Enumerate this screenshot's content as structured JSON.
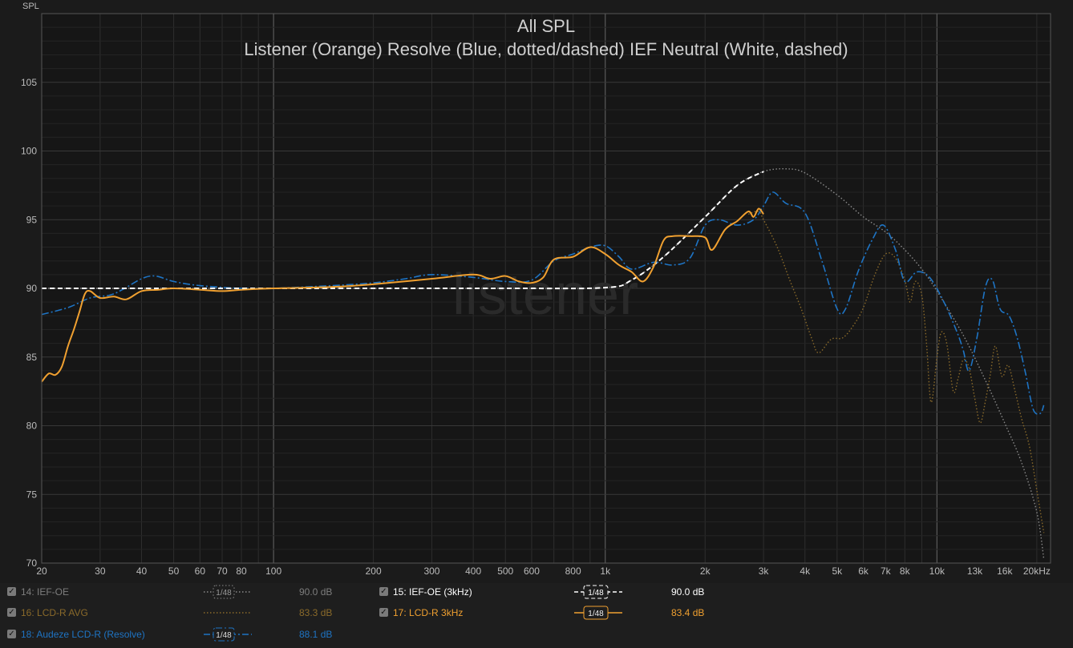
{
  "chart_data": {
    "type": "line",
    "title": "All SPL",
    "subtitle": "Listener (Orange) Resolve (Blue, dotted/dashed) IEF Neutral (White, dashed)",
    "ylabel": "SPL",
    "watermark": "listener",
    "x_scale": "log",
    "xlim": [
      20,
      22000
    ],
    "ylim": [
      70,
      110
    ],
    "grid": true,
    "x_ticks": [
      {
        "v": 20,
        "label": "20"
      },
      {
        "v": 30,
        "label": "30"
      },
      {
        "v": 40,
        "label": "40"
      },
      {
        "v": 50,
        "label": "50"
      },
      {
        "v": 60,
        "label": "60"
      },
      {
        "v": 70,
        "label": "70"
      },
      {
        "v": 80,
        "label": "80"
      },
      {
        "v": 100,
        "label": "100"
      },
      {
        "v": 200,
        "label": "200"
      },
      {
        "v": 300,
        "label": "300"
      },
      {
        "v": 400,
        "label": "400"
      },
      {
        "v": 500,
        "label": "500"
      },
      {
        "v": 600,
        "label": "600"
      },
      {
        "v": 800,
        "label": "800"
      },
      {
        "v": 1000,
        "label": "1k"
      },
      {
        "v": 2000,
        "label": "2k"
      },
      {
        "v": 3000,
        "label": "3k"
      },
      {
        "v": 4000,
        "label": "4k"
      },
      {
        "v": 5000,
        "label": "5k"
      },
      {
        "v": 6000,
        "label": "6k"
      },
      {
        "v": 7000,
        "label": "7k"
      },
      {
        "v": 8000,
        "label": "8k"
      },
      {
        "v": 10000,
        "label": "10k"
      },
      {
        "v": 13000,
        "label": "13k"
      },
      {
        "v": 16000,
        "label": "16k"
      },
      {
        "v": 20000,
        "label": "20kHz"
      }
    ],
    "y_ticks": [
      {
        "v": 70,
        "label": "70"
      },
      {
        "v": 75,
        "label": "75"
      },
      {
        "v": 80,
        "label": "80"
      },
      {
        "v": 85,
        "label": "85"
      },
      {
        "v": 90,
        "label": "90"
      },
      {
        "v": 95,
        "label": "95"
      },
      {
        "v": 100,
        "label": "100"
      },
      {
        "v": 105,
        "label": "105"
      }
    ],
    "series": [
      {
        "name": "14: IEF-OE",
        "color": "#8a8a8a",
        "style": "dotted",
        "points": [
          [
            20,
            90
          ],
          [
            100,
            90
          ],
          [
            500,
            90
          ],
          [
            1000,
            90.05
          ],
          [
            1200,
            90.6
          ],
          [
            1500,
            92.3
          ],
          [
            2000,
            95.2
          ],
          [
            2500,
            97.5
          ],
          [
            3000,
            98.5
          ],
          [
            3500,
            98.7
          ],
          [
            4000,
            98.4
          ],
          [
            5000,
            96.8
          ],
          [
            6000,
            95.2
          ],
          [
            7000,
            94.1
          ],
          [
            8000,
            92.8
          ],
          [
            9000,
            91.4
          ],
          [
            10000,
            89.8
          ],
          [
            12000,
            86.6
          ],
          [
            14000,
            83.3
          ],
          [
            16000,
            80.2
          ],
          [
            18000,
            77.3
          ],
          [
            20000,
            73.7
          ],
          [
            21000,
            70.3
          ]
        ]
      },
      {
        "name": "16: LCD-R AVG",
        "color": "#8a6a2a",
        "style": "dotted",
        "points": [
          [
            2700,
            95.4
          ],
          [
            2900,
            95.6
          ],
          [
            3000,
            95.0
          ],
          [
            3300,
            93.0
          ],
          [
            3600,
            90.6
          ],
          [
            3900,
            88.5
          ],
          [
            4200,
            86.3
          ],
          [
            4400,
            85.3
          ],
          [
            4800,
            86.3
          ],
          [
            5200,
            86.4
          ],
          [
            5600,
            87.3
          ],
          [
            6000,
            88.6
          ],
          [
            6500,
            91.0
          ],
          [
            7000,
            92.5
          ],
          [
            7500,
            92.2
          ],
          [
            8000,
            90.6
          ],
          [
            8300,
            89.0
          ],
          [
            8600,
            90.5
          ],
          [
            9000,
            89.5
          ],
          [
            9300,
            86.0
          ],
          [
            9600,
            81.7
          ],
          [
            10000,
            85.0
          ],
          [
            10300,
            86.8
          ],
          [
            10700,
            86.0
          ],
          [
            11200,
            82.5
          ],
          [
            11600,
            83.5
          ],
          [
            12000,
            84.8
          ],
          [
            12500,
            84.2
          ],
          [
            13000,
            82.0
          ],
          [
            13500,
            80.2
          ],
          [
            14000,
            81.8
          ],
          [
            14500,
            83.8
          ],
          [
            15000,
            85.8
          ],
          [
            15700,
            83.6
          ],
          [
            16400,
            84.4
          ],
          [
            17200,
            82.5
          ],
          [
            18000,
            80.5
          ],
          [
            19000,
            78.5
          ],
          [
            20000,
            75.3
          ],
          [
            21000,
            72.2
          ]
        ]
      },
      {
        "name": "18: Audeze LCD-R (Resolve)",
        "color": "#1e74c4",
        "style": "dashdot",
        "points": [
          [
            20,
            88.1
          ],
          [
            24,
            88.6
          ],
          [
            28,
            89.3
          ],
          [
            32,
            89.5
          ],
          [
            35,
            89.9
          ],
          [
            40,
            90.7
          ],
          [
            44,
            90.9
          ],
          [
            50,
            90.5
          ],
          [
            60,
            90.2
          ],
          [
            80,
            90.0
          ],
          [
            100,
            90.0
          ],
          [
            150,
            90.2
          ],
          [
            200,
            90.4
          ],
          [
            250,
            90.7
          ],
          [
            300,
            91.0
          ],
          [
            400,
            90.8
          ],
          [
            500,
            90.5
          ],
          [
            600,
            90.6
          ],
          [
            700,
            92.0
          ],
          [
            800,
            92.5
          ],
          [
            900,
            93.0
          ],
          [
            1000,
            93.1
          ],
          [
            1100,
            92.3
          ],
          [
            1200,
            91.4
          ],
          [
            1400,
            91.9
          ],
          [
            1600,
            91.7
          ],
          [
            1800,
            92.2
          ],
          [
            2000,
            94.6
          ],
          [
            2200,
            95.0
          ],
          [
            2500,
            94.6
          ],
          [
            2800,
            95.0
          ],
          [
            3000,
            96.0
          ],
          [
            3200,
            97.0
          ],
          [
            3500,
            96.2
          ],
          [
            4000,
            95.5
          ],
          [
            4500,
            92.0
          ],
          [
            5000,
            88.5
          ],
          [
            5300,
            88.5
          ],
          [
            5800,
            91.3
          ],
          [
            6400,
            93.6
          ],
          [
            6900,
            94.6
          ],
          [
            7500,
            92.8
          ],
          [
            8000,
            90.5
          ],
          [
            8700,
            91.2
          ],
          [
            9500,
            90.8
          ],
          [
            10500,
            89.0
          ],
          [
            11500,
            86.8
          ],
          [
            12000,
            85.5
          ],
          [
            12500,
            84.0
          ],
          [
            13200,
            86.4
          ],
          [
            14000,
            90.1
          ],
          [
            14700,
            90.6
          ],
          [
            15500,
            88.5
          ],
          [
            16500,
            88.0
          ],
          [
            17500,
            86.3
          ],
          [
            18500,
            83.8
          ],
          [
            19500,
            81.2
          ],
          [
            20500,
            80.9
          ],
          [
            21000,
            81.5
          ]
        ]
      },
      {
        "name": "15: IEF-OE (3kHz)",
        "color": "#ffffff",
        "style": "dashed",
        "points": [
          [
            20,
            90
          ],
          [
            100,
            90
          ],
          [
            500,
            90
          ],
          [
            1000,
            90.05
          ],
          [
            1200,
            90.6
          ],
          [
            1500,
            92.3
          ],
          [
            2000,
            95.2
          ],
          [
            2500,
            97.5
          ],
          [
            3000,
            98.5
          ]
        ]
      },
      {
        "name": "17: LCD-R 3kHz",
        "color": "#f0a030",
        "style": "solid",
        "points": [
          [
            20,
            83.2
          ],
          [
            21,
            83.8
          ],
          [
            22,
            83.7
          ],
          [
            23,
            84.3
          ],
          [
            24,
            85.8
          ],
          [
            25,
            87.0
          ],
          [
            26,
            88.3
          ],
          [
            27,
            89.6
          ],
          [
            28,
            89.8
          ],
          [
            30,
            89.3
          ],
          [
            33,
            89.4
          ],
          [
            36,
            89.2
          ],
          [
            40,
            89.8
          ],
          [
            45,
            89.9
          ],
          [
            50,
            90.0
          ],
          [
            60,
            89.9
          ],
          [
            70,
            89.8
          ],
          [
            80,
            89.9
          ],
          [
            100,
            90.0
          ],
          [
            150,
            90.1
          ],
          [
            200,
            90.3
          ],
          [
            300,
            90.7
          ],
          [
            400,
            91.0
          ],
          [
            450,
            90.7
          ],
          [
            500,
            90.9
          ],
          [
            550,
            90.5
          ],
          [
            600,
            90.4
          ],
          [
            650,
            90.8
          ],
          [
            700,
            92.1
          ],
          [
            800,
            92.3
          ],
          [
            900,
            93.0
          ],
          [
            1000,
            92.5
          ],
          [
            1100,
            91.7
          ],
          [
            1200,
            91.2
          ],
          [
            1300,
            90.5
          ],
          [
            1400,
            91.6
          ],
          [
            1500,
            93.5
          ],
          [
            1600,
            93.8
          ],
          [
            1800,
            93.8
          ],
          [
            2000,
            93.7
          ],
          [
            2100,
            92.8
          ],
          [
            2300,
            94.3
          ],
          [
            2500,
            94.9
          ],
          [
            2700,
            95.6
          ],
          [
            2800,
            95.2
          ],
          [
            2900,
            95.8
          ],
          [
            3000,
            95.4
          ]
        ]
      }
    ]
  },
  "legend": {
    "left": [
      {
        "label": "14: IEF-OE",
        "value": "90.0 dB",
        "color": "#8a8a8a",
        "smoothing": "1/48",
        "style": "dotted"
      },
      {
        "label": "16: LCD-R AVG",
        "value": "83.3 dB",
        "color": "#8a6a2a",
        "smoothing": "",
        "style": "dotted"
      },
      {
        "label": "18: Audeze LCD-R (Resolve)",
        "value": "88.1 dB",
        "color": "#1e74c4",
        "smoothing": "1/48",
        "style": "dashdot"
      }
    ],
    "right": [
      {
        "label": "15: IEF-OE (3kHz)",
        "value": "90.0 dB",
        "color": "#ffffff",
        "smoothing": "1/48",
        "style": "dashed"
      },
      {
        "label": "17: LCD-R 3kHz",
        "value": "83.4 dB",
        "color": "#f0a030",
        "smoothing": "1/48",
        "style": "solid"
      }
    ],
    "check_mark": "✓"
  }
}
